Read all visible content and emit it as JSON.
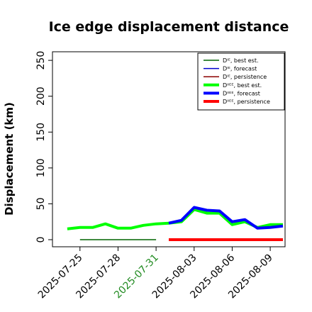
{
  "chart_data": {
    "type": "line",
    "title": "Ice edge displacement distance",
    "ylabel": "Displacement (km)",
    "xlabel": "",
    "ylim": [
      0,
      260
    ],
    "yticks": [
      0,
      50,
      100,
      150,
      200,
      250
    ],
    "xlim": [
      "2025-07-23",
      "2025-08-10"
    ],
    "xticks": [
      {
        "date": "2025-07-25",
        "label": "2025-07-25",
        "color": "#000000"
      },
      {
        "date": "2025-07-28",
        "label": "2025-07-28",
        "color": "#000000"
      },
      {
        "date": "2025-07-31",
        "label": "2025-07-31",
        "color": "#228B22"
      },
      {
        "date": "2025-08-03",
        "label": "2025-08-03",
        "color": "#000000"
      },
      {
        "date": "2025-08-06",
        "label": "2025-08-06",
        "color": "#000000"
      },
      {
        "date": "2025-08-09",
        "label": "2025-08-09",
        "color": "#000000"
      }
    ],
    "legend_position": "top-right",
    "series": [
      {
        "name": "Dᴵᴱ, best est.",
        "color": "#006400",
        "width": 1.5,
        "points": [
          [
            "2025-07-25",
            0
          ],
          [
            "2025-07-31",
            0
          ]
        ]
      },
      {
        "name": "Dᴵᴱ, forecast",
        "color": "#0000CD",
        "width": 1.5,
        "points": []
      },
      {
        "name": "Dᴵᴱ, persistence",
        "color": "#8B0000",
        "width": 1.5,
        "points": []
      },
      {
        "name": "Dᴵᴵᴱᴱ, best est.",
        "color": "#00FF00",
        "width": 4,
        "points": [
          [
            "2025-07-24",
            15
          ],
          [
            "2025-07-25",
            17
          ],
          [
            "2025-07-26",
            17
          ],
          [
            "2025-07-27",
            22
          ],
          [
            "2025-07-28",
            16
          ],
          [
            "2025-07-29",
            16
          ],
          [
            "2025-07-30",
            20
          ],
          [
            "2025-07-31",
            22
          ],
          [
            "2025-08-01",
            23
          ],
          [
            "2025-08-02",
            25
          ],
          [
            "2025-08-03",
            42
          ],
          [
            "2025-08-04",
            37
          ],
          [
            "2025-08-05",
            37
          ],
          [
            "2025-08-06",
            21
          ],
          [
            "2025-08-07",
            25
          ],
          [
            "2025-08-08",
            17
          ],
          [
            "2025-08-09",
            21
          ],
          [
            "2025-08-10",
            21
          ]
        ]
      },
      {
        "name": "Dᴵᴵᴱᴱ, forecast",
        "color": "#0000FF",
        "width": 4,
        "points": [
          [
            "2025-08-01",
            23
          ],
          [
            "2025-08-02",
            27
          ],
          [
            "2025-08-03",
            45
          ],
          [
            "2025-08-04",
            41
          ],
          [
            "2025-08-05",
            40
          ],
          [
            "2025-08-06",
            25
          ],
          [
            "2025-08-07",
            28
          ],
          [
            "2025-08-08",
            16
          ],
          [
            "2025-08-09",
            17
          ],
          [
            "2025-08-10",
            19
          ]
        ]
      },
      {
        "name": "Dᴵᴵᴱᴱ, persistence",
        "color": "#FF0000",
        "width": 4,
        "points": [
          [
            "2025-08-01",
            0
          ],
          [
            "2025-08-10",
            0
          ]
        ]
      }
    ]
  }
}
